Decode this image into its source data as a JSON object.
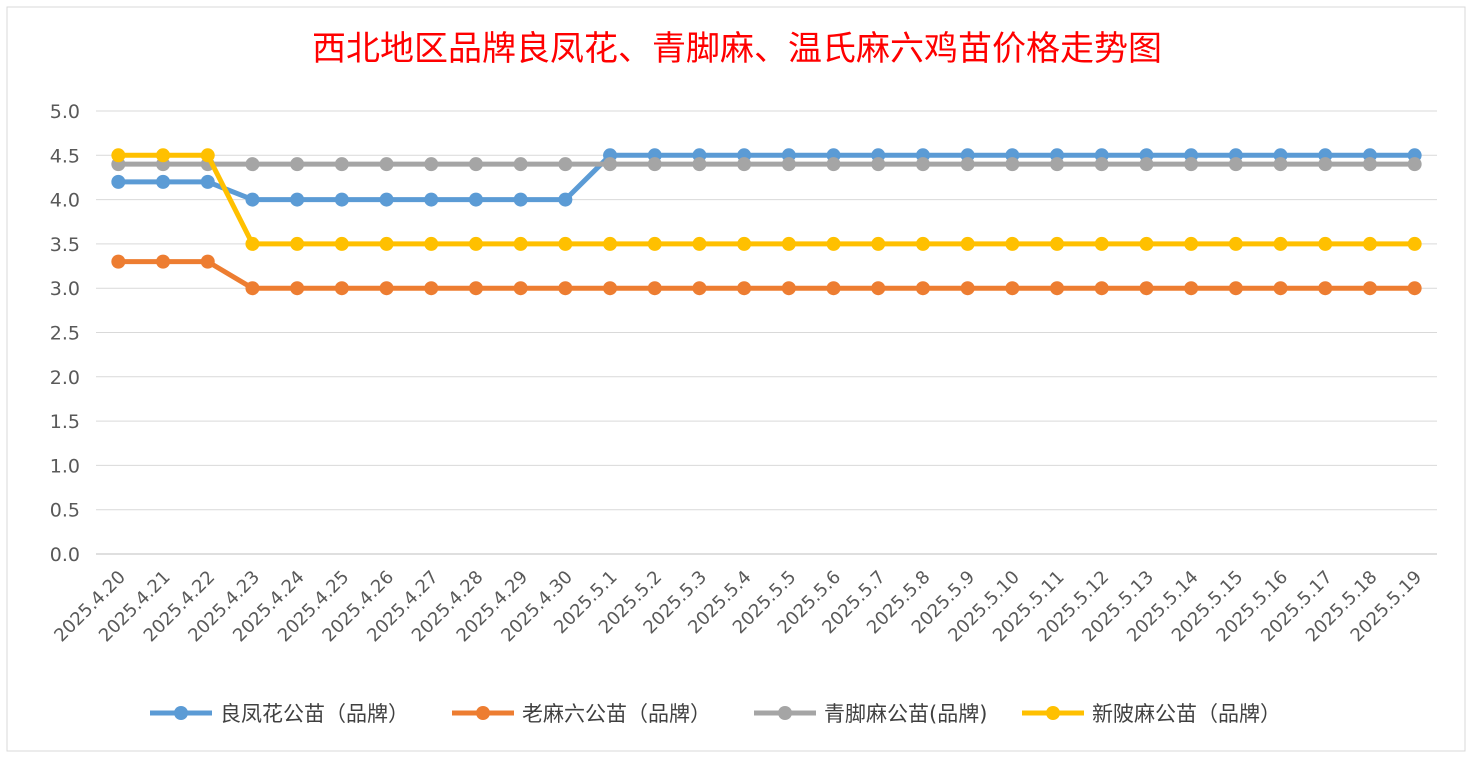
{
  "chart_data": {
    "type": "line",
    "title": "西北地区品牌良凤花、青脚麻、温氏麻六鸡苗价格走势图",
    "xlabel": "",
    "ylabel": "",
    "ylim": [
      0,
      5
    ],
    "yticks": [
      "0.0",
      "0.5",
      "1.0",
      "1.5",
      "2.0",
      "2.5",
      "3.0",
      "3.5",
      "4.0",
      "4.5",
      "5.0"
    ],
    "grid": true,
    "legend": "bottom",
    "categories": [
      "2025.4.20",
      "2025.4.21",
      "2025.4.22",
      "2025.4.23",
      "2025.4.24",
      "2025.4.25",
      "2025.4.26",
      "2025.4.27",
      "2025.4.28",
      "2025.4.29",
      "2025.4.30",
      "2025.5.1",
      "2025.5.2",
      "2025.5.3",
      "2025.5.4",
      "2025.5.5",
      "2025.5.6",
      "2025.5.7",
      "2025.5.8",
      "2025.5.9",
      "2025.5.10",
      "2025.5.11",
      "2025.5.12",
      "2025.5.13",
      "2025.5.14",
      "2025.5.15",
      "2025.5.16",
      "2025.5.17",
      "2025.5.18",
      "2025.5.19"
    ],
    "series": [
      {
        "name": "良凤花公苗（品牌）",
        "color": "#5b9bd5",
        "values": [
          4.2,
          4.2,
          4.2,
          4.0,
          4.0,
          4.0,
          4.0,
          4.0,
          4.0,
          4.0,
          4.0,
          4.5,
          4.5,
          4.5,
          4.5,
          4.5,
          4.5,
          4.5,
          4.5,
          4.5,
          4.5,
          4.5,
          4.5,
          4.5,
          4.5,
          4.5,
          4.5,
          4.5,
          4.5,
          4.5
        ]
      },
      {
        "name": "老麻六公苗（品牌）",
        "color": "#ed7d31",
        "values": [
          3.3,
          3.3,
          3.3,
          3.0,
          3.0,
          3.0,
          3.0,
          3.0,
          3.0,
          3.0,
          3.0,
          3.0,
          3.0,
          3.0,
          3.0,
          3.0,
          3.0,
          3.0,
          3.0,
          3.0,
          3.0,
          3.0,
          3.0,
          3.0,
          3.0,
          3.0,
          3.0,
          3.0,
          3.0,
          3.0
        ]
      },
      {
        "name": "青脚麻公苗(品牌)",
        "color": "#a5a5a5",
        "values": [
          4.4,
          4.4,
          4.4,
          4.4,
          4.4,
          4.4,
          4.4,
          4.4,
          4.4,
          4.4,
          4.4,
          4.4,
          4.4,
          4.4,
          4.4,
          4.4,
          4.4,
          4.4,
          4.4,
          4.4,
          4.4,
          4.4,
          4.4,
          4.4,
          4.4,
          4.4,
          4.4,
          4.4,
          4.4,
          4.4
        ]
      },
      {
        "name": "新陂麻公苗（品牌）",
        "color": "#ffc000",
        "values": [
          4.5,
          4.5,
          4.5,
          3.5,
          3.5,
          3.5,
          3.5,
          3.5,
          3.5,
          3.5,
          3.5,
          3.5,
          3.5,
          3.5,
          3.5,
          3.5,
          3.5,
          3.5,
          3.5,
          3.5,
          3.5,
          3.5,
          3.5,
          3.5,
          3.5,
          3.5,
          3.5,
          3.5,
          3.5,
          3.5
        ]
      }
    ]
  }
}
